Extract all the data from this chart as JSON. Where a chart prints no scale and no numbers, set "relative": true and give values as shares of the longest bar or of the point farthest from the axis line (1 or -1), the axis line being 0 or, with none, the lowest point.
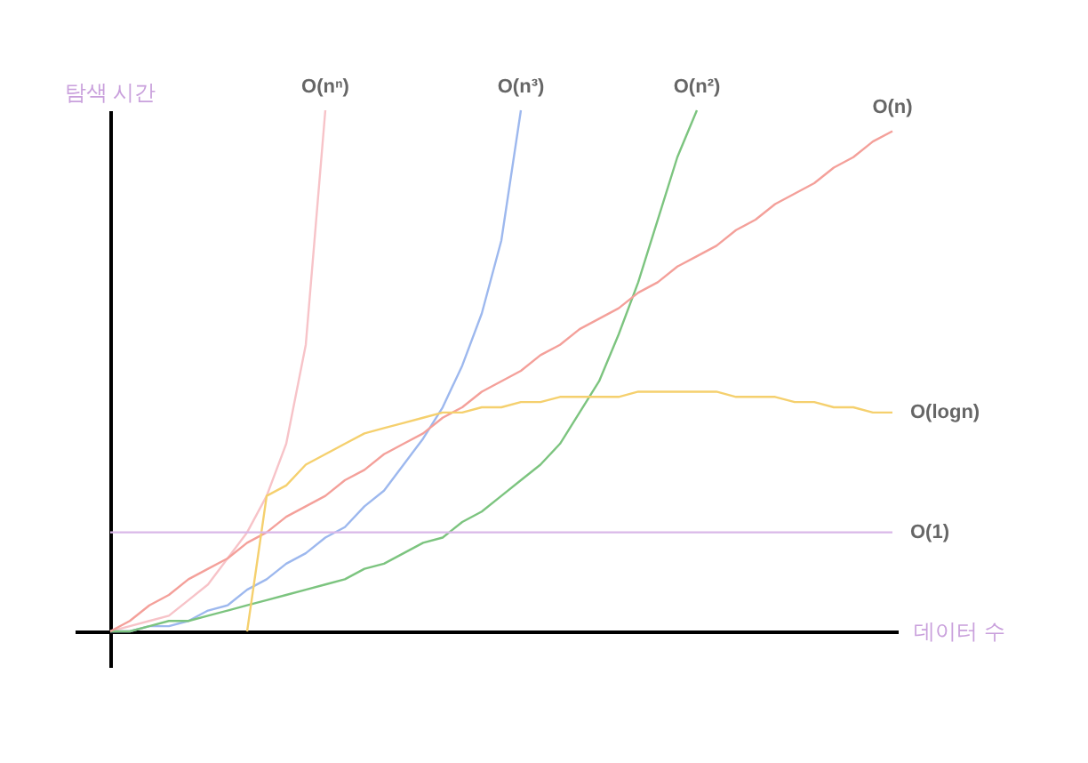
{
  "chart_data": {
    "type": "line",
    "relative": true,
    "xlabel": "데이터 수",
    "ylabel": "탐색 시간",
    "legend": false,
    "grid": false,
    "marker": "none",
    "categories": [
      null,
      null,
      null,
      null,
      null,
      null,
      null,
      null,
      null,
      null,
      null,
      null,
      null,
      null,
      null,
      null,
      null,
      null,
      null,
      null,
      null,
      null,
      null,
      null,
      null,
      null,
      null,
      null,
      null,
      null,
      null,
      null,
      null,
      null,
      null,
      null,
      null,
      null,
      null,
      null,
      null
    ],
    "series": [
      {
        "name": "O(nⁿ)",
        "color": "#f7c3c8",
        "values": [
          0,
          0.01,
          0.02,
          0.03,
          0.06,
          0.09,
          0.14,
          0.19,
          0.26,
          0.36,
          0.55,
          1.0,
          null,
          null,
          null,
          null,
          null,
          null,
          null,
          null,
          null,
          null,
          null,
          null,
          null,
          null,
          null,
          null,
          null,
          null,
          null,
          null,
          null,
          null,
          null,
          null,
          null,
          null,
          null,
          null,
          null
        ]
      },
      {
        "name": "O(n³)",
        "color": "#9db8ee",
        "values": [
          0,
          0.0,
          0.01,
          0.01,
          0.02,
          0.04,
          0.05,
          0.08,
          0.1,
          0.13,
          0.15,
          0.18,
          0.2,
          0.24,
          0.27,
          0.32,
          0.37,
          0.43,
          0.51,
          0.61,
          0.75,
          1.0,
          null,
          null,
          null,
          null,
          null,
          null,
          null,
          null,
          null,
          null,
          null,
          null,
          null,
          null,
          null,
          null,
          null,
          null,
          null
        ]
      },
      {
        "name": "O(n²)",
        "color": "#7cc47f",
        "values": [
          0,
          0.0,
          0.01,
          0.02,
          0.02,
          0.03,
          0.04,
          0.05,
          0.06,
          0.07,
          0.08,
          0.09,
          0.1,
          0.12,
          0.13,
          0.15,
          0.17,
          0.18,
          0.21,
          0.23,
          0.26,
          0.29,
          0.32,
          0.36,
          0.42,
          0.48,
          0.57,
          0.67,
          0.79,
          0.91,
          1.0,
          null,
          null,
          null,
          null,
          null,
          null,
          null,
          null,
          null,
          null
        ]
      },
      {
        "name": "O(n)",
        "color": "#f4a09a",
        "values": [
          0,
          0.02,
          0.05,
          0.07,
          0.1,
          0.12,
          0.14,
          0.17,
          0.19,
          0.22,
          0.24,
          0.26,
          0.29,
          0.31,
          0.34,
          0.36,
          0.38,
          0.41,
          0.43,
          0.46,
          0.48,
          0.5,
          0.53,
          0.55,
          0.58,
          0.6,
          0.62,
          0.65,
          0.67,
          0.7,
          0.72,
          0.74,
          0.77,
          0.79,
          0.82,
          0.84,
          0.86,
          0.89,
          0.91,
          0.94,
          0.96
        ]
      },
      {
        "name": "O(logn)",
        "color": "#f5d06e",
        "values": [
          null,
          null,
          null,
          null,
          null,
          null,
          null,
          0,
          0.26,
          0.28,
          0.32,
          0.34,
          0.36,
          0.38,
          0.39,
          0.4,
          0.41,
          0.42,
          0.42,
          0.43,
          0.43,
          0.44,
          0.44,
          0.45,
          0.45,
          0.45,
          0.45,
          0.46,
          0.46,
          0.46,
          0.46,
          0.46,
          0.45,
          0.45,
          0.45,
          0.44,
          0.44,
          0.43,
          0.43,
          0.42,
          0.42
        ]
      },
      {
        "name": "O(1)",
        "color": "#d9b8e8",
        "values": [
          0.19,
          0.19,
          0.19,
          0.19,
          0.19,
          0.19,
          0.19,
          0.19,
          0.19,
          0.19,
          0.19,
          0.19,
          0.19,
          0.19,
          0.19,
          0.19,
          0.19,
          0.19,
          0.19,
          0.19,
          0.19,
          0.19,
          0.19,
          0.19,
          0.19,
          0.19,
          0.19,
          0.19,
          0.19,
          0.19,
          0.19,
          0.19,
          0.19,
          0.19,
          0.19,
          0.19,
          0.19,
          0.19,
          0.19,
          0.19,
          0.19
        ]
      }
    ]
  }
}
